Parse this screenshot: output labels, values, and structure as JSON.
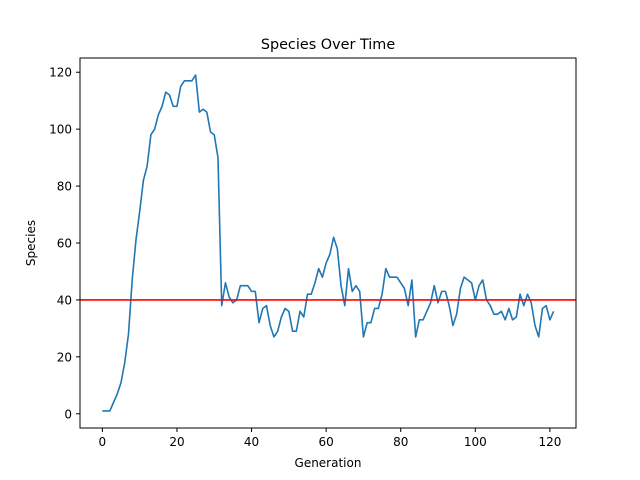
{
  "chart_data": {
    "type": "line",
    "title": "Species Over Time",
    "xlabel": "Generation",
    "ylabel": "Species",
    "xlim": [
      -6,
      127
    ],
    "ylim": [
      -5,
      125
    ],
    "xticks": [
      0,
      20,
      40,
      60,
      80,
      100,
      120
    ],
    "yticks": [
      0,
      20,
      40,
      60,
      80,
      100,
      120
    ],
    "grid": false,
    "series": [
      {
        "color": "#1f77b4",
        "x": [
          0,
          1,
          2,
          3,
          4,
          5,
          6,
          7,
          8,
          9,
          10,
          11,
          12,
          13,
          14,
          15,
          16,
          17,
          18,
          19,
          20,
          21,
          22,
          23,
          24,
          25,
          26,
          27,
          28,
          29,
          30,
          31,
          32,
          33,
          34,
          35,
          36,
          37,
          38,
          39,
          40,
          41,
          42,
          43,
          44,
          45,
          46,
          47,
          48,
          49,
          50,
          51,
          52,
          53,
          54,
          55,
          56,
          57,
          58,
          59,
          60,
          61,
          62,
          63,
          64,
          65,
          66,
          67,
          68,
          69,
          70,
          71,
          72,
          73,
          74,
          75,
          76,
          77,
          78,
          79,
          80,
          81,
          82,
          83,
          84,
          85,
          86,
          87,
          88,
          89,
          90,
          91,
          92,
          93,
          94,
          95,
          96,
          97,
          98,
          99,
          100,
          101,
          102,
          103,
          104,
          105,
          106,
          107,
          108,
          109,
          110,
          111,
          112,
          113,
          114,
          115,
          116,
          117,
          118,
          119,
          120,
          121
        ],
        "y": [
          1,
          1,
          1,
          4,
          7,
          11,
          18,
          28,
          47,
          61,
          71,
          82,
          87,
          98,
          100,
          105,
          108,
          113,
          112,
          108,
          108,
          115,
          117,
          117,
          117,
          119,
          106,
          107,
          106,
          99,
          98,
          90,
          38,
          46,
          41,
          39,
          40,
          45,
          45,
          45,
          43,
          43,
          32,
          37,
          38,
          31,
          27,
          29,
          34,
          37,
          36,
          29,
          29,
          36,
          34,
          42,
          42,
          46,
          51,
          48,
          53,
          56,
          62,
          58,
          45,
          38,
          51,
          43,
          45,
          43,
          27,
          32,
          32,
          37,
          37,
          42,
          51,
          48,
          48,
          48,
          46,
          44,
          38,
          47,
          27,
          33,
          33,
          36,
          39,
          45,
          39,
          43,
          43,
          38,
          31,
          35,
          44,
          48,
          47,
          46,
          40,
          45,
          47,
          40,
          38,
          35,
          35,
          36,
          33,
          37,
          33,
          34,
          42,
          38,
          42,
          39,
          31,
          27,
          37,
          38,
          33,
          36
        ]
      }
    ],
    "reference_line": {
      "y": 40,
      "color": "#ff0000"
    }
  }
}
